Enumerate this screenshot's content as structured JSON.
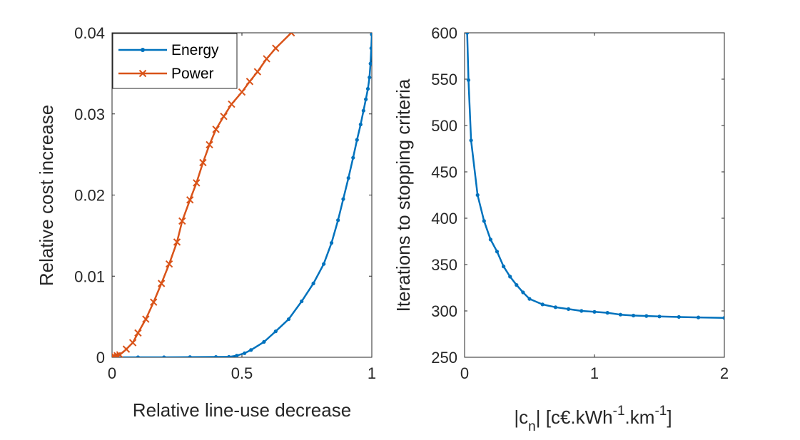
{
  "chart_data": [
    {
      "type": "line",
      "xlabel": "Relative line-use decrease",
      "ylabel": "Relative cost increase",
      "xlim": [
        0,
        1
      ],
      "ylim": [
        0,
        0.04
      ],
      "xticks": [
        0,
        0.5,
        1
      ],
      "xtick_labels": [
        "0",
        "0.5",
        "1"
      ],
      "yticks": [
        0,
        0.01,
        0.02,
        0.03,
        0.04
      ],
      "ytick_labels": [
        "0",
        "0.01",
        "0.02",
        "0.03",
        "0.04"
      ],
      "legend_position": "top-left",
      "series": [
        {
          "name": "Energy",
          "color": "#0072BD",
          "marker": "dot",
          "x": [
            0,
            0.1,
            0.2,
            0.3,
            0.4,
            0.45,
            0.48,
            0.51,
            0.535,
            0.585,
            0.63,
            0.68,
            0.73,
            0.775,
            0.815,
            0.845,
            0.87,
            0.89,
            0.91,
            0.928,
            0.943,
            0.957,
            0.968,
            0.977,
            0.985,
            0.991,
            0.995,
            0.998,
            1.0
          ],
          "y": [
            0,
            0,
            0,
            2e-05,
            4e-05,
            5e-05,
            0.0002,
            0.0005,
            0.0009,
            0.0019,
            0.0032,
            0.0047,
            0.0069,
            0.0091,
            0.0115,
            0.0141,
            0.0169,
            0.0195,
            0.0221,
            0.0246,
            0.0268,
            0.0287,
            0.0304,
            0.0318,
            0.0331,
            0.0345,
            0.0362,
            0.0381,
            0.0398
          ]
        },
        {
          "name": "Power",
          "color": "#D95319",
          "marker": "x",
          "x": [
            0,
            0.005,
            0.01,
            0.02,
            0.03,
            0.055,
            0.08,
            0.1,
            0.13,
            0.16,
            0.19,
            0.22,
            0.25,
            0.27,
            0.3,
            0.325,
            0.35,
            0.375,
            0.4,
            0.43,
            0.46,
            0.5,
            0.53,
            0.56,
            0.595,
            0.63,
            0.69
          ],
          "y": [
            0,
            5e-05,
            0.0001,
            0.0002,
            0.0003,
            0.001,
            0.0018,
            0.003,
            0.0047,
            0.0068,
            0.0091,
            0.0115,
            0.0142,
            0.0168,
            0.0194,
            0.0215,
            0.024,
            0.0262,
            0.0281,
            0.0297,
            0.0312,
            0.0327,
            0.034,
            0.0352,
            0.0368,
            0.0381,
            0.04
          ]
        }
      ]
    },
    {
      "type": "line",
      "xlabel_parts": [
        "|c",
        "n",
        "| [c€.kWh",
        "-1",
        ".km",
        "-1",
        "]"
      ],
      "ylabel": "Iterations to stopping criteria",
      "xlim": [
        0,
        2
      ],
      "ylim": [
        250,
        600
      ],
      "xticks": [
        0,
        1,
        2
      ],
      "xtick_labels": [
        "0",
        "1",
        "2"
      ],
      "yticks": [
        250,
        300,
        350,
        400,
        450,
        500,
        550,
        600
      ],
      "ytick_labels": [
        "250",
        "300",
        "350",
        "400",
        "450",
        "500",
        "550",
        "600"
      ],
      "series": [
        {
          "color": "#0072BD",
          "marker": "dot",
          "x": [
            0.02,
            0.03,
            0.05,
            0.1,
            0.15,
            0.2,
            0.25,
            0.3,
            0.35,
            0.4,
            0.45,
            0.5,
            0.6,
            0.7,
            0.8,
            0.9,
            1.0,
            1.1,
            1.2,
            1.3,
            1.4,
            1.5,
            1.65,
            1.8,
            2.0
          ],
          "y": [
            600,
            549,
            484,
            425,
            397,
            377,
            364,
            348,
            337,
            328,
            320,
            313,
            307,
            304,
            302,
            300,
            299,
            298,
            296,
            295,
            294.5,
            294,
            293.5,
            293,
            292.5
          ]
        }
      ]
    }
  ]
}
